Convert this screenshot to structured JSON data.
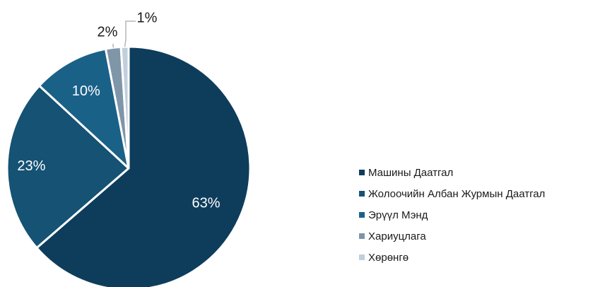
{
  "chart_data": {
    "type": "pie",
    "title": "",
    "slices": [
      {
        "label": "Машины Даатгал",
        "value": 63,
        "data_label": "63%",
        "color": "#0e3d5c"
      },
      {
        "label": "Жолоочийн Албан Журмын Даатгал",
        "value": 23,
        "data_label": "23%",
        "color": "#155274"
      },
      {
        "label": "Эрүүл Мэнд",
        "value": 10,
        "data_label": "10%",
        "color": "#1a6188"
      },
      {
        "label": "Хариуцлага",
        "value": 2,
        "data_label": "2%",
        "color": "#7f95a8"
      },
      {
        "label": "Хөрөнгө",
        "value": 1,
        "data_label": "1%",
        "color": "#c0cfdb"
      }
    ],
    "start_position": "top, clockwise",
    "legend_position": "right"
  }
}
